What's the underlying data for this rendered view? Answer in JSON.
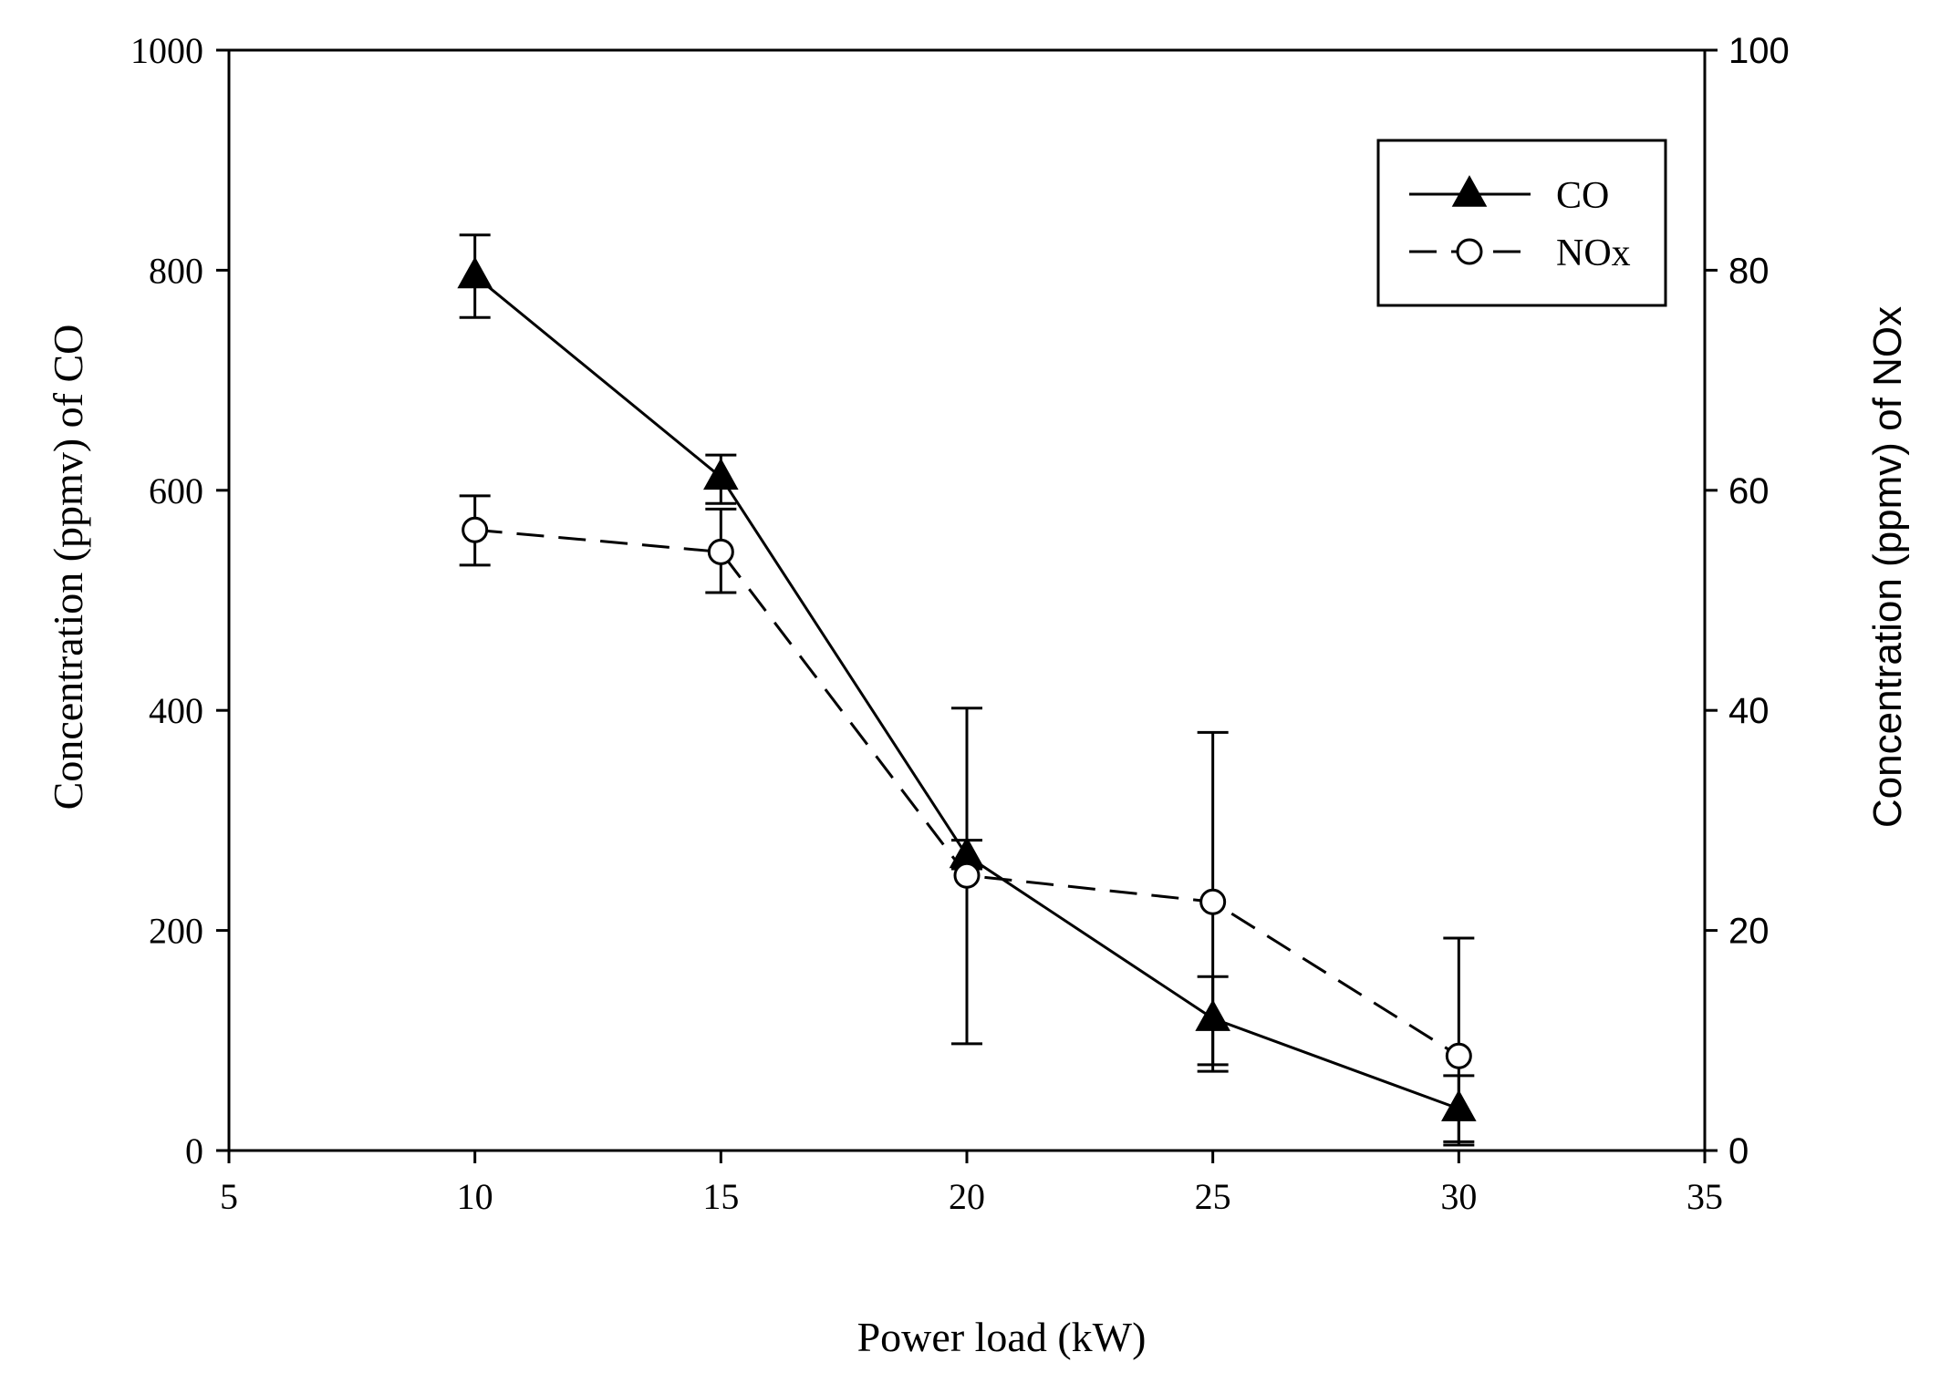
{
  "chart_data": {
    "type": "line",
    "title": "",
    "xlabel": "Power load (kW)",
    "ylabel_left": "Concentration (ppmv) of CO",
    "ylabel_right": "Concentration  (ppmv) of NOx",
    "xlim": [
      5,
      35
    ],
    "ylim_left": [
      0,
      1000
    ],
    "ylim_right": [
      0,
      100
    ],
    "xticks": [
      5,
      10,
      15,
      20,
      25,
      30,
      35
    ],
    "yticks_left": [
      0,
      200,
      400,
      600,
      800,
      1000
    ],
    "yticks_right": [
      0,
      20,
      40,
      60,
      80,
      100
    ],
    "grid": false,
    "legend_position": "top-right",
    "series": [
      {
        "name": "CO",
        "axis": "left",
        "marker": "filled-triangle",
        "line_style": "solid",
        "x": [
          10,
          15,
          20,
          25,
          30
        ],
        "values": [
          795,
          612,
          268,
          120,
          38
        ],
        "err_low": [
          757,
          588,
          256,
          78,
          8
        ],
        "err_high": [
          832,
          632,
          282,
          158,
          68
        ]
      },
      {
        "name": "NOx",
        "axis": "right",
        "marker": "open-circle",
        "line_style": "dashed",
        "x": [
          10,
          15,
          20,
          25,
          30
        ],
        "values": [
          56.4,
          54.4,
          25.0,
          22.6,
          8.6
        ],
        "err_low": [
          53.2,
          50.7,
          9.7,
          7.2,
          0.5
        ],
        "err_high": [
          59.5,
          58.3,
          40.2,
          38.0,
          19.3
        ]
      }
    ]
  }
}
